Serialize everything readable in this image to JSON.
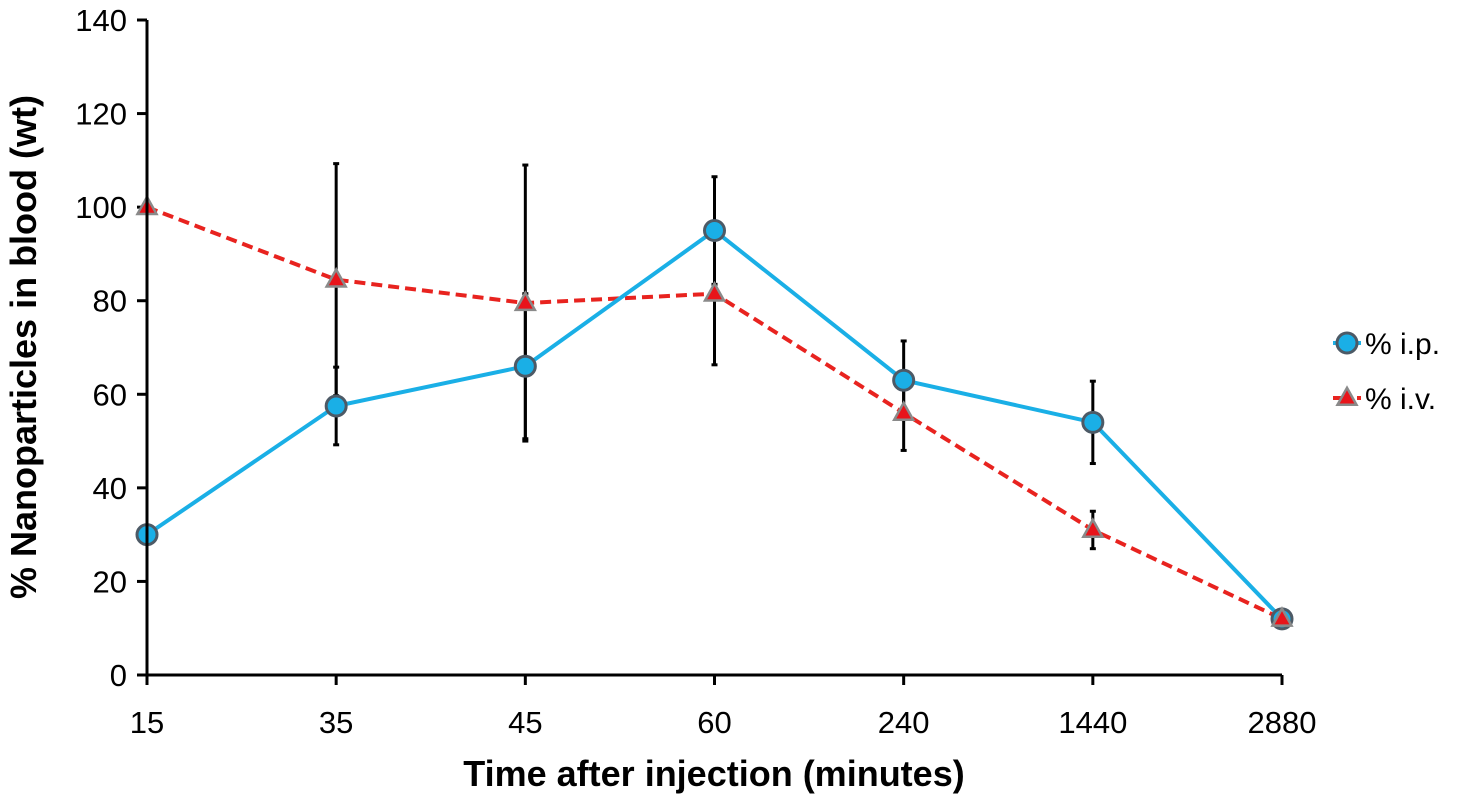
{
  "chart_data": {
    "type": "line",
    "title": "",
    "xlabel": "Time after injection (minutes)",
    "ylabel": "% Nanoparticles in blood (wt)",
    "categories": [
      "15",
      "35",
      "45",
      "60",
      "240",
      "1440",
      "2880"
    ],
    "ylim": [
      0,
      140
    ],
    "yticks": [
      "0",
      "20",
      "40",
      "60",
      "80",
      "100",
      "120",
      "140"
    ],
    "grid": false,
    "legend_position": "right",
    "series": [
      {
        "name": "% i.p.",
        "values": [
          30,
          57.5,
          66,
          95,
          63,
          54,
          12
        ],
        "error": [
          null,
          8.3,
          15.5,
          11.5,
          8.4,
          8.8,
          null
        ],
        "color": "#1aafe6",
        "line_style": "solid",
        "marker": "circle",
        "marker_fill": "#1aafe6",
        "marker_edge": "#4d5a66"
      },
      {
        "name": "% i.v.",
        "values": [
          100,
          84.5,
          79.5,
          81.5,
          56,
          31,
          12
        ],
        "error": [
          null,
          24.8,
          29.5,
          15.2,
          8,
          4,
          null
        ],
        "color": "#e8231f",
        "line_style": "dashed",
        "marker": "triangle",
        "marker_fill": "#e8141a",
        "marker_edge": "#8a8a8a"
      }
    ]
  }
}
